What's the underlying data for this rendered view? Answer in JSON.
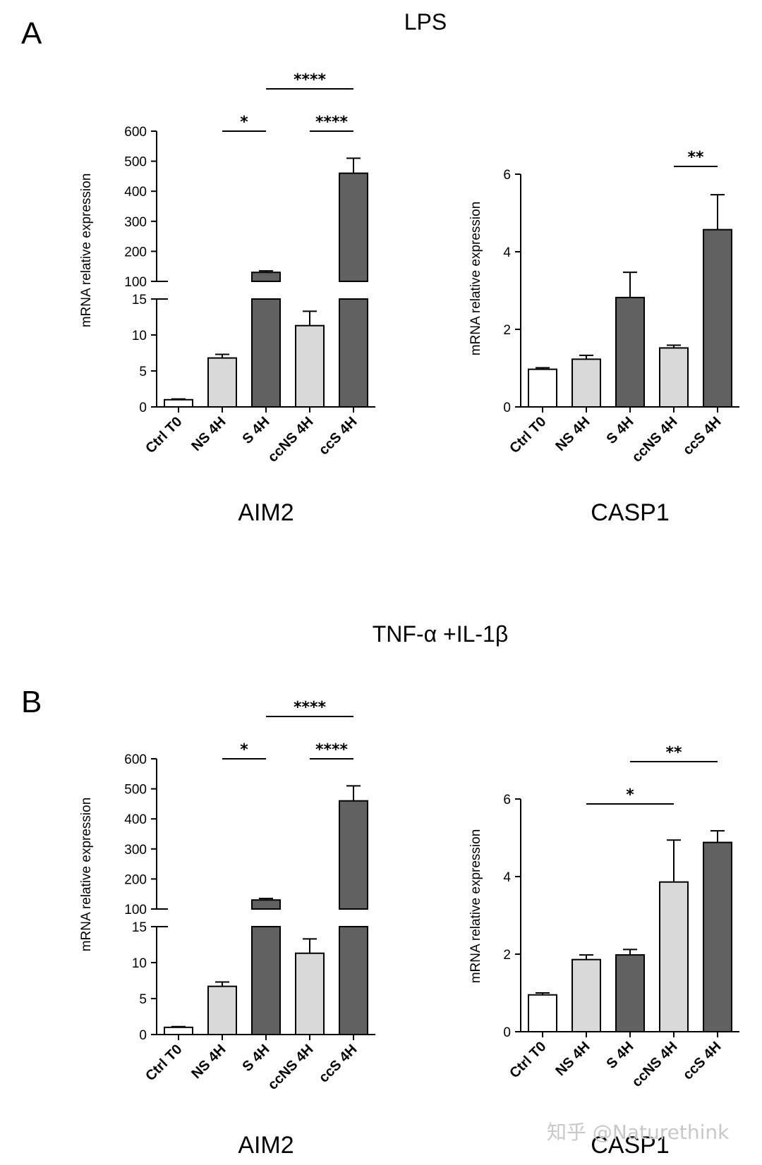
{
  "figure": {
    "panel_a_letter": "A",
    "panel_b_letter": "B",
    "panel_a_condition": "LPS",
    "panel_b_condition": "TNF-α +IL-1β",
    "watermark": "知乎 @Naturethink"
  },
  "colors": {
    "Ctrl T0": "#ffffff",
    "NS 4H": "#d9d9d9",
    "S 4H": "#616161",
    "ccNS 4H": "#d9d9d9",
    "ccS 4H": "#616161"
  },
  "chart_data": [
    {
      "type": "bar",
      "panel": "A",
      "gene": "AIM2",
      "ylabel": "mRNA relative expression",
      "categories": [
        "Ctrl T0",
        "NS 4H",
        "S 4H",
        "ccNS 4H",
        "ccS 4H"
      ],
      "values": [
        1.0,
        6.8,
        130,
        11.3,
        460
      ],
      "errors": [
        0.1,
        0.5,
        5,
        2.0,
        50
      ],
      "y_axis_break": {
        "lower_range": [
          0,
          15
        ],
        "upper_range": [
          100,
          600
        ]
      },
      "lower_ticks": [
        0,
        5,
        10,
        15
      ],
      "upper_ticks": [
        100,
        200,
        300,
        400,
        500,
        600
      ],
      "significance": [
        {
          "from": "NS 4H",
          "to": "S 4H",
          "label": "*"
        },
        {
          "from": "ccNS 4H",
          "to": "ccS 4H",
          "label": "****"
        },
        {
          "from": "S 4H",
          "to": "ccS 4H",
          "label": "****"
        }
      ]
    },
    {
      "type": "bar",
      "panel": "A",
      "gene": "CASP1",
      "ylabel": "mRNA relative expression",
      "categories": [
        "Ctrl T0",
        "NS 4H",
        "S 4H",
        "ccNS 4H",
        "ccS 4H"
      ],
      "values": [
        0.97,
        1.23,
        2.82,
        1.52,
        4.57
      ],
      "errors": [
        0.04,
        0.1,
        0.65,
        0.07,
        0.9
      ],
      "ylim": [
        0,
        6
      ],
      "ticks": [
        0,
        2,
        4,
        6
      ],
      "significance": [
        {
          "from": "ccNS 4H",
          "to": "ccS 4H",
          "label": "**"
        }
      ]
    },
    {
      "type": "bar",
      "panel": "B",
      "gene": "AIM2",
      "ylabel": "mRNA relative expression",
      "categories": [
        "Ctrl T0",
        "NS 4H",
        "S 4H",
        "ccNS 4H",
        "ccS 4H"
      ],
      "values": [
        1.0,
        6.7,
        130,
        11.3,
        460
      ],
      "errors": [
        0.1,
        0.6,
        5,
        2.0,
        50
      ],
      "y_axis_break": {
        "lower_range": [
          0,
          15
        ],
        "upper_range": [
          100,
          600
        ]
      },
      "lower_ticks": [
        0,
        5,
        10,
        15
      ],
      "upper_ticks": [
        100,
        200,
        300,
        400,
        500,
        600
      ],
      "significance": [
        {
          "from": "NS 4H",
          "to": "S 4H",
          "label": "*"
        },
        {
          "from": "ccNS 4H",
          "to": "ccS 4H",
          "label": "****"
        },
        {
          "from": "S 4H",
          "to": "ccS 4H",
          "label": "****"
        }
      ]
    },
    {
      "type": "bar",
      "panel": "B",
      "gene": "CASP1",
      "ylabel": "mRNA relative expression",
      "categories": [
        "Ctrl T0",
        "NS 4H",
        "S 4H",
        "ccNS 4H",
        "ccS 4H"
      ],
      "values": [
        0.95,
        1.86,
        1.98,
        3.86,
        4.88
      ],
      "errors": [
        0.05,
        0.12,
        0.14,
        1.08,
        0.3
      ],
      "ylim": [
        0,
        6
      ],
      "ticks": [
        0,
        2,
        4,
        6
      ],
      "significance": [
        {
          "from": "NS 4H",
          "to": "ccNS 4H",
          "label": "*"
        },
        {
          "from": "S 4H",
          "to": "ccS 4H",
          "label": "**"
        }
      ]
    }
  ]
}
